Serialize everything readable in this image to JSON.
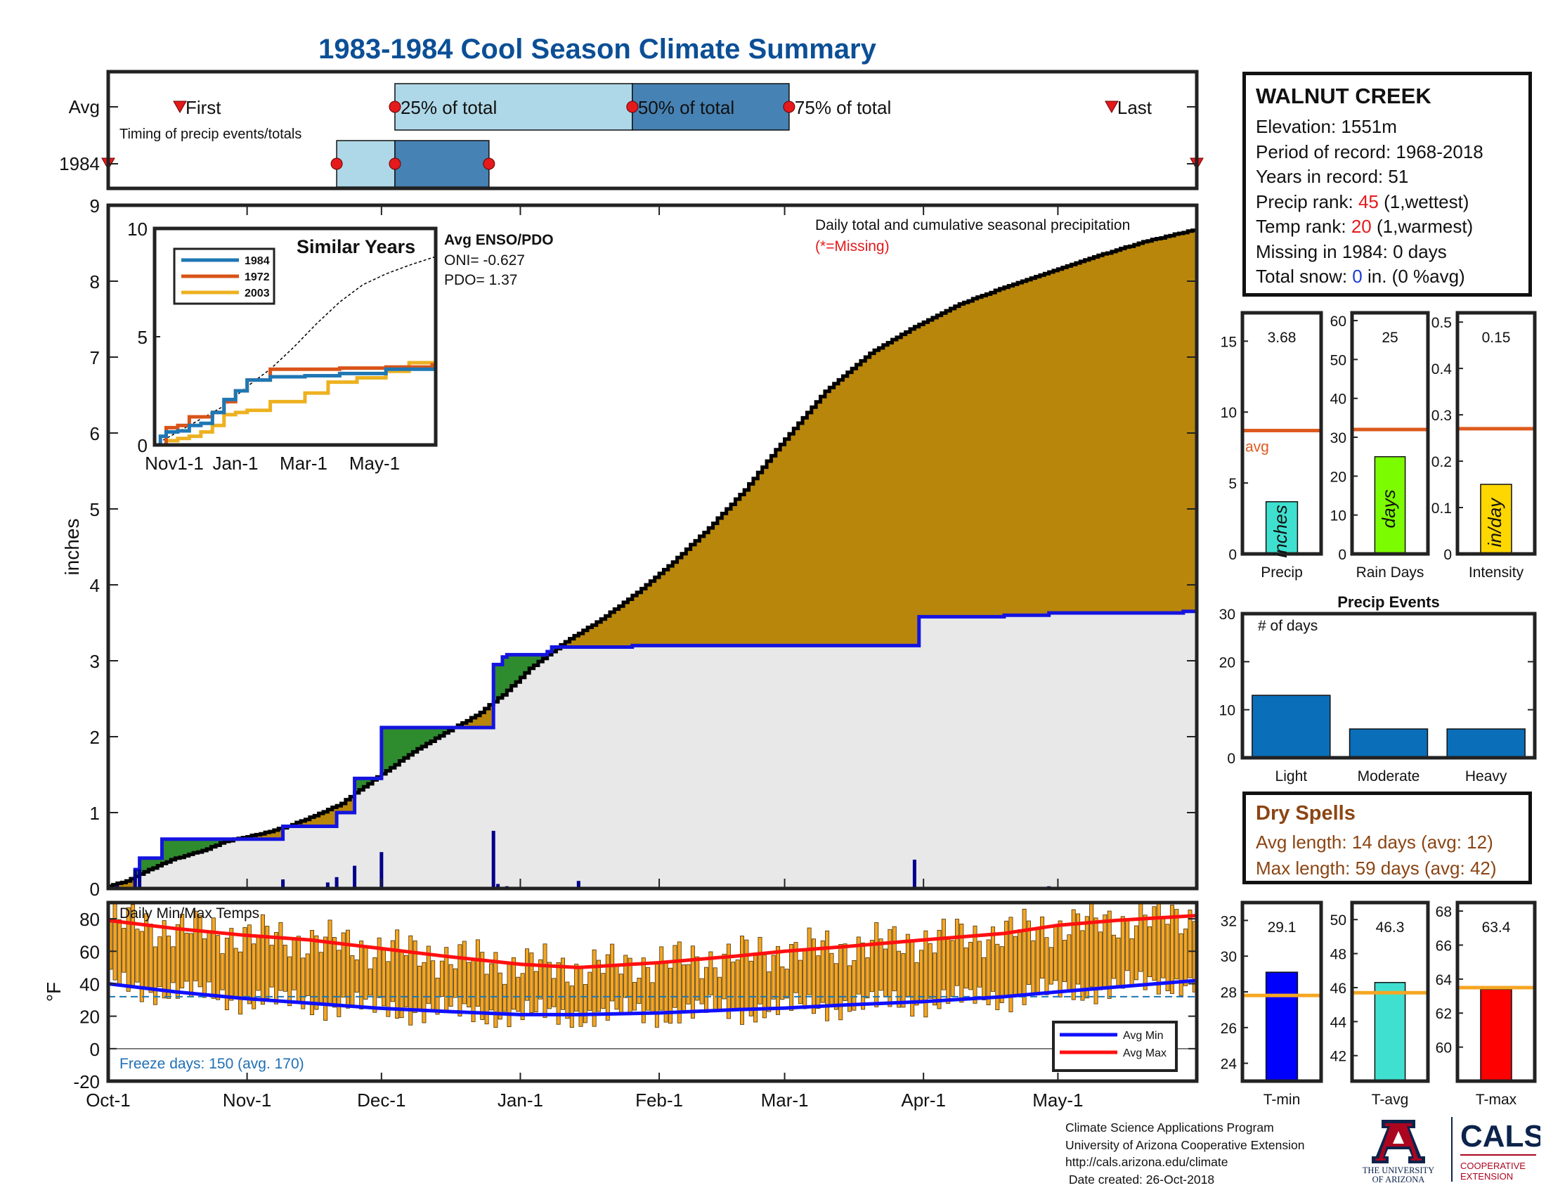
{
  "title": "1983-1984 Cool Season Climate Summary",
  "colors": {
    "title": "#0b4f96",
    "cumulative_fill": "#b8860b",
    "avg_fill": "#e8e8e8",
    "avg_line": "#1414e0",
    "early_fill": "#2e8b2e",
    "daily_bar": "#00008b",
    "timing_light": "#aed8e8",
    "timing_dark": "#4682b4",
    "temp_bar": "#f5a623",
    "avg_max_line": "#ff1010",
    "avg_min_line": "#1010ff",
    "freeze_line": "#1f77b4",
    "precip_bar": "#40e0d0",
    "raindays_bar": "#7cfc00",
    "intensity_bar": "#ffd700",
    "avg_ref_line": "#dd5a1e",
    "events_bar": "#0a6eb8",
    "tmin_bar": "#0000ff",
    "tavg_bar": "#40e0d0",
    "tmax_bar": "#ff0000",
    "temp_ref_line": "#f5a623",
    "dry_spell_text": "#8b4513"
  },
  "station": {
    "name": "WALNUT CREEK",
    "elevation": "Elevation: 1551m",
    "period": "Period of record: 1968-2018",
    "years": "Years in record: 51",
    "precip_rank_label": "Precip rank: ",
    "precip_rank_value": "45",
    "precip_rank_note": " (1,wettest)",
    "temp_rank_label": "Temp rank: ",
    "temp_rank_value": "20",
    "temp_rank_note": " (1,warmest)",
    "missing": "Missing in 1984: 0 days",
    "snow_label": "Total snow: ",
    "snow_value": "0",
    "snow_note": " in. (0 %avg)"
  },
  "dry_spells": {
    "title": "Dry Spells",
    "avg": "Avg length: 14 days (avg: 12)",
    "max": "Max length: 59 days (avg: 42)"
  },
  "credits": {
    "line1": "Climate Science Applications Program",
    "line2": "University of Arizona Cooperative Extension",
    "line3": "http://cals.arizona.edu/climate",
    "line4": " Date created: 26-Oct-2018"
  },
  "logos": {
    "ua_text1": "THE UNIVERSITY",
    "ua_text2": "OF ARIZONA",
    "cals": "CALS",
    "cals_sub1": "COOPERATIVE",
    "cals_sub2": "EXTENSION"
  },
  "chart_data": [
    {
      "id": "timing",
      "type": "table",
      "note": "Timing of precip events/totals",
      "rows": [
        "Avg",
        "1984"
      ],
      "axis_range_days": [
        0,
        243
      ],
      "avg": {
        "first": 16,
        "p25": 64,
        "p50": 117,
        "p75": 152,
        "last": 224
      },
      "year1984": {
        "first": 0,
        "p25": 51,
        "p50": 64,
        "p75": 85,
        "last": 243
      },
      "labels": {
        "first": "First",
        "p25": "25% of total",
        "p50": "50% of total",
        "p75": "75% of total",
        "last": "Last"
      }
    },
    {
      "id": "cumulative",
      "type": "area",
      "ylabel": "inches",
      "ylim": [
        0,
        9
      ],
      "xlim_days": [
        0,
        243
      ],
      "x_ticks": [
        {
          "day": 0,
          "label": "Oct-1"
        },
        {
          "day": 31,
          "label": "Nov-1"
        },
        {
          "day": 61,
          "label": "Dec-1"
        },
        {
          "day": 92,
          "label": "Jan-1"
        },
        {
          "day": 123,
          "label": "Feb-1"
        },
        {
          "day": 151,
          "label": "Mar-1"
        },
        {
          "day": 182,
          "label": "Apr-1"
        },
        {
          "day": 212,
          "label": "May-1"
        }
      ],
      "y_ticks": [
        0,
        1,
        2,
        3,
        4,
        5,
        6,
        7,
        8,
        9
      ],
      "annotation": "Daily total and cumulative seasonal precipitation",
      "missing_note": "(*=Missing)",
      "avg_cumulative": {
        "x": [
          0,
          4,
          8,
          14,
          21,
          26,
          34,
          40,
          46,
          52,
          56,
          62,
          68,
          75,
          82,
          88,
          94,
          102,
          110,
          118,
          126,
          134,
          142,
          150,
          160,
          170,
          180,
          190,
          200,
          210,
          220,
          230,
          238,
          243
        ],
        "y": [
          0.03,
          0.1,
          0.22,
          0.38,
          0.5,
          0.62,
          0.72,
          0.82,
          0.96,
          1.12,
          1.3,
          1.55,
          1.8,
          2.05,
          2.28,
          2.55,
          2.9,
          3.25,
          3.55,
          3.9,
          4.3,
          4.75,
          5.25,
          5.85,
          6.55,
          7.05,
          7.4,
          7.7,
          7.92,
          8.12,
          8.32,
          8.5,
          8.62,
          8.68
        ]
      },
      "season_cumulative": {
        "x": [
          0,
          6,
          7,
          12,
          19,
          38,
          39,
          50,
          51,
          54,
          55,
          60,
          61,
          85,
          86,
          88,
          89,
          98,
          99,
          117,
          180,
          181,
          200,
          210,
          240,
          243
        ],
        "y": [
          0.0,
          0.25,
          0.4,
          0.65,
          0.65,
          0.65,
          0.82,
          0.82,
          1.0,
          1.0,
          1.45,
          1.45,
          2.12,
          2.12,
          2.95,
          3.05,
          3.08,
          3.12,
          3.18,
          3.2,
          3.2,
          3.58,
          3.6,
          3.63,
          3.65,
          3.68
        ]
      },
      "daily": [
        {
          "day": 2,
          "value": 0.04
        },
        {
          "day": 6,
          "value": 0.25
        },
        {
          "day": 7,
          "value": 0.25
        },
        {
          "day": 39,
          "value": 0.12
        },
        {
          "day": 49,
          "value": 0.08
        },
        {
          "day": 51,
          "value": 0.15
        },
        {
          "day": 55,
          "value": 0.3
        },
        {
          "day": 61,
          "value": 0.48
        },
        {
          "day": 86,
          "value": 0.76
        },
        {
          "day": 87,
          "value": 0.06
        },
        {
          "day": 89,
          "value": 0.03
        },
        {
          "day": 105,
          "value": 0.1
        },
        {
          "day": 180,
          "value": 0.38
        },
        {
          "day": 210,
          "value": 0.03
        }
      ]
    },
    {
      "id": "similar_years",
      "type": "line",
      "title": "Similar Years",
      "ylim": [
        0,
        10
      ],
      "y_ticks": [
        0,
        5,
        10
      ],
      "x_ticks": [
        "Nov1-1",
        "Jan-1",
        "Mar-1",
        "May-1"
      ],
      "enso_title": "Avg ENSO/PDO",
      "oni": "ONI= -0.627",
      "pdo": "PDO= 1.37",
      "series": [
        {
          "name": "1984",
          "color": "#1f77b4",
          "x": [
            0,
            5,
            10,
            20,
            30,
            40,
            50,
            60,
            70,
            80,
            100,
            130,
            160,
            200,
            243
          ],
          "y": [
            0,
            0.4,
            0.6,
            0.65,
            0.9,
            1.0,
            1.5,
            2.1,
            2.5,
            3.0,
            3.15,
            3.2,
            3.3,
            3.5,
            3.7
          ]
        },
        {
          "name": "1972",
          "color": "#d95319",
          "x": [
            0,
            10,
            20,
            30,
            40,
            50,
            60,
            70,
            80,
            100,
            130,
            160,
            200,
            240,
            243
          ],
          "y": [
            0,
            0.8,
            0.9,
            1.3,
            1.3,
            1.5,
            2.0,
            2.5,
            3.0,
            3.5,
            3.5,
            3.55,
            3.6,
            3.7,
            4.9
          ]
        },
        {
          "name": "2003",
          "color": "#edb120",
          "x": [
            0,
            10,
            20,
            30,
            40,
            50,
            60,
            70,
            80,
            100,
            130,
            150,
            175,
            200,
            220,
            243
          ],
          "y": [
            0,
            0.2,
            0.3,
            0.4,
            0.6,
            0.9,
            1.4,
            1.5,
            1.6,
            2.0,
            2.4,
            2.9,
            3.1,
            3.4,
            3.8,
            4.2
          ]
        }
      ],
      "avg_dashed": {
        "x": [
          0,
          20,
          40,
          60,
          80,
          100,
          120,
          140,
          160,
          180,
          200,
          220,
          243
        ],
        "y": [
          0,
          0.6,
          1.2,
          1.8,
          2.7,
          3.5,
          4.5,
          5.6,
          6.6,
          7.4,
          7.9,
          8.3,
          8.7
        ]
      }
    },
    {
      "id": "temps",
      "type": "bar",
      "title": "Daily Min/Max Temps",
      "ylabel": "°F",
      "ylim": [
        -20,
        90
      ],
      "y_ticks": [
        -20,
        0,
        20,
        40,
        60,
        80
      ],
      "freeze_line": 32,
      "freeze_note": "Freeze days: 150 (avg. 170)",
      "legend": [
        "Avg Min",
        "Avg Max"
      ],
      "avg_max": {
        "x": [
          0,
          15,
          30,
          45,
          60,
          75,
          92,
          105,
          123,
          140,
          151,
          165,
          182,
          200,
          212,
          225,
          243
        ],
        "y": [
          79,
          74,
          70,
          67,
          62,
          57,
          52,
          50,
          53,
          57,
          60,
          63,
          67,
          71,
          76,
          79,
          82
        ]
      },
      "avg_min": {
        "x": [
          0,
          15,
          30,
          45,
          60,
          75,
          92,
          105,
          123,
          140,
          151,
          165,
          182,
          200,
          212,
          225,
          243
        ],
        "y": [
          40,
          35,
          31,
          28,
          25,
          23,
          21,
          21,
          22,
          24,
          25,
          27,
          29,
          32,
          35,
          38,
          42
        ]
      }
    },
    {
      "id": "season_bars",
      "type": "bar",
      "panels": [
        {
          "name": "Precip",
          "unit": "inches",
          "value": 3.68,
          "label": "3.68",
          "avg": 8.7,
          "ylim": [
            0,
            17
          ],
          "ticks": [
            0,
            5,
            10,
            15
          ],
          "avg_label": "avg"
        },
        {
          "name": "Rain Days",
          "unit": "days",
          "value": 25,
          "label": "25",
          "avg": 32,
          "ylim": [
            0,
            62
          ],
          "ticks": [
            0,
            10,
            20,
            30,
            40,
            50,
            60
          ]
        },
        {
          "name": "Intensity",
          "unit": "in/day",
          "value": 0.15,
          "label": "0.15",
          "avg": 0.27,
          "ylim": [
            0,
            0.52
          ],
          "ticks": [
            0,
            0.1,
            0.2,
            0.3,
            0.4,
            0.5
          ]
        }
      ]
    },
    {
      "id": "precip_events",
      "type": "bar",
      "title": "Precip Events",
      "ylabel": "# of days",
      "categories": [
        "Light",
        "Moderate",
        "Heavy"
      ],
      "values": [
        13,
        6,
        6
      ],
      "ylim": [
        0,
        30
      ],
      "y_ticks": [
        0,
        10,
        20,
        30
      ]
    },
    {
      "id": "temp_bars",
      "type": "bar",
      "panels": [
        {
          "name": "T-min",
          "value": 29.1,
          "label": "29.1",
          "avg": 27.8,
          "ylim": [
            23,
            33
          ],
          "ticks": [
            24,
            26,
            28,
            30,
            32
          ]
        },
        {
          "name": "T-avg",
          "value": 46.3,
          "label": "46.3",
          "avg": 45.7,
          "ylim": [
            40.5,
            51
          ],
          "ticks": [
            42,
            44,
            46,
            48,
            50
          ]
        },
        {
          "name": "T-max",
          "value": 63.4,
          "label": "63.4",
          "avg": 63.5,
          "ylim": [
            58,
            68.5
          ],
          "ticks": [
            60,
            62,
            64,
            66,
            68
          ]
        }
      ]
    }
  ]
}
